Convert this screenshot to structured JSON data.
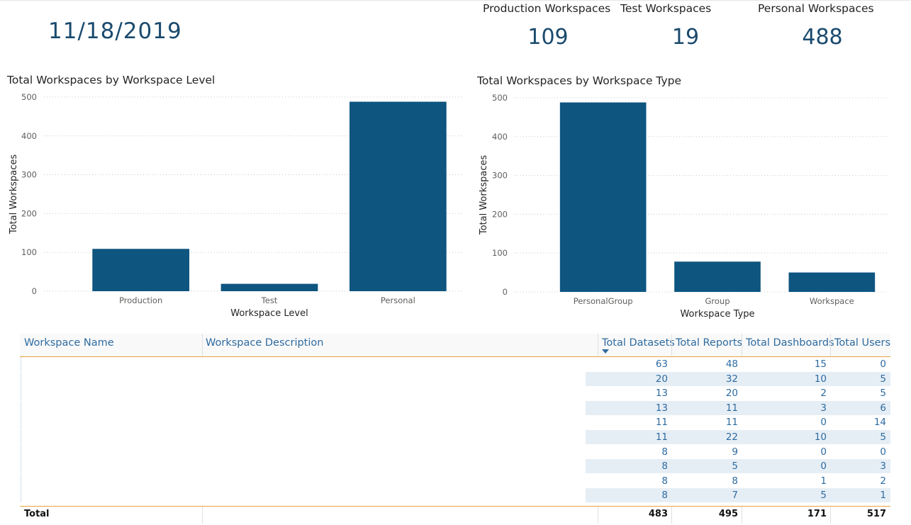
{
  "date": "11/18/2019",
  "kpis": [
    {
      "label": "Production Workspaces",
      "value": "109"
    },
    {
      "label": "Test Workspaces",
      "value": "19"
    },
    {
      "label": "Personal Workspaces",
      "value": "488"
    }
  ],
  "colors": {
    "bar": "#0e5580",
    "accent": "#1a4a6e",
    "header_line": "#e8a33d",
    "alt_row": "#e6eef5"
  },
  "chart_data": [
    {
      "type": "bar",
      "title": "Total Workspaces by Workspace Level",
      "xlabel": "Workspace Level",
      "ylabel": "Total Workspaces",
      "categories": [
        "Production",
        "Test",
        "Personal"
      ],
      "values": [
        109,
        19,
        488
      ],
      "ylim": [
        0,
        500
      ],
      "yticks": [
        0,
        100,
        200,
        300,
        400,
        500
      ],
      "grid": true
    },
    {
      "type": "bar",
      "title": "Total Workspaces by Workspace Type",
      "xlabel": "Workspace Type",
      "ylabel": "Total Workspaces",
      "categories": [
        "PersonalGroup",
        "Group",
        "Workspace"
      ],
      "values": [
        488,
        78,
        50
      ],
      "ylim": [
        0,
        500
      ],
      "yticks": [
        0,
        100,
        200,
        300,
        400,
        500
      ],
      "grid": true
    }
  ],
  "table": {
    "columns": [
      "Workspace Name",
      "Workspace Description",
      "Total Datasets",
      "Total Reports",
      "Total Dashboards",
      "Total Users"
    ],
    "sort_icon": "sort-descending-icon",
    "rows": [
      [
        "63",
        "48",
        "15",
        "0"
      ],
      [
        "20",
        "32",
        "10",
        "5"
      ],
      [
        "13",
        "20",
        "2",
        "5"
      ],
      [
        "13",
        "11",
        "3",
        "6"
      ],
      [
        "11",
        "11",
        "0",
        "14"
      ],
      [
        "11",
        "22",
        "10",
        "5"
      ],
      [
        "8",
        "9",
        "0",
        "0"
      ],
      [
        "8",
        "5",
        "0",
        "3"
      ],
      [
        "8",
        "8",
        "1",
        "2"
      ],
      [
        "8",
        "7",
        "5",
        "1"
      ]
    ],
    "total_label": "Total",
    "totals": [
      "483",
      "495",
      "171",
      "517"
    ]
  }
}
